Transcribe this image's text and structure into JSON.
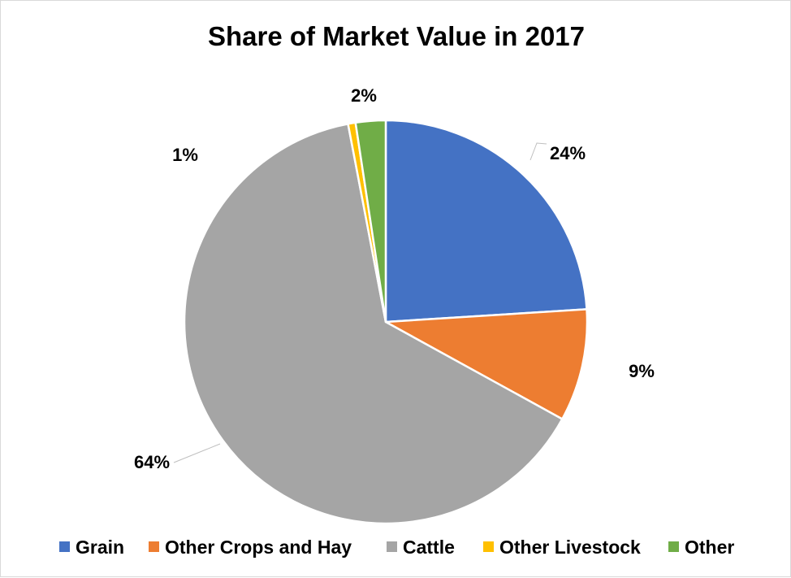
{
  "chart_data": {
    "type": "pie",
    "title": "Share of Market Value in 2017",
    "slices": [
      {
        "name": "Grain",
        "value": 24,
        "label": "24%",
        "color": "#4472C4"
      },
      {
        "name": "Other Crops and Hay",
        "value": 9,
        "label": "9%",
        "color": "#ED7D31"
      },
      {
        "name": "Cattle",
        "value": 64,
        "label": "64%",
        "color": "#A5A5A5"
      },
      {
        "name": "Other Livestock",
        "value": 0.6,
        "label": "1%",
        "color": "#FFC000"
      },
      {
        "name": "Other",
        "value": 2.4,
        "label": "2%",
        "color": "#70AD47"
      }
    ],
    "legend_placement": "bottom",
    "start_angle": "12 o'clock",
    "direction": "clockwise"
  }
}
